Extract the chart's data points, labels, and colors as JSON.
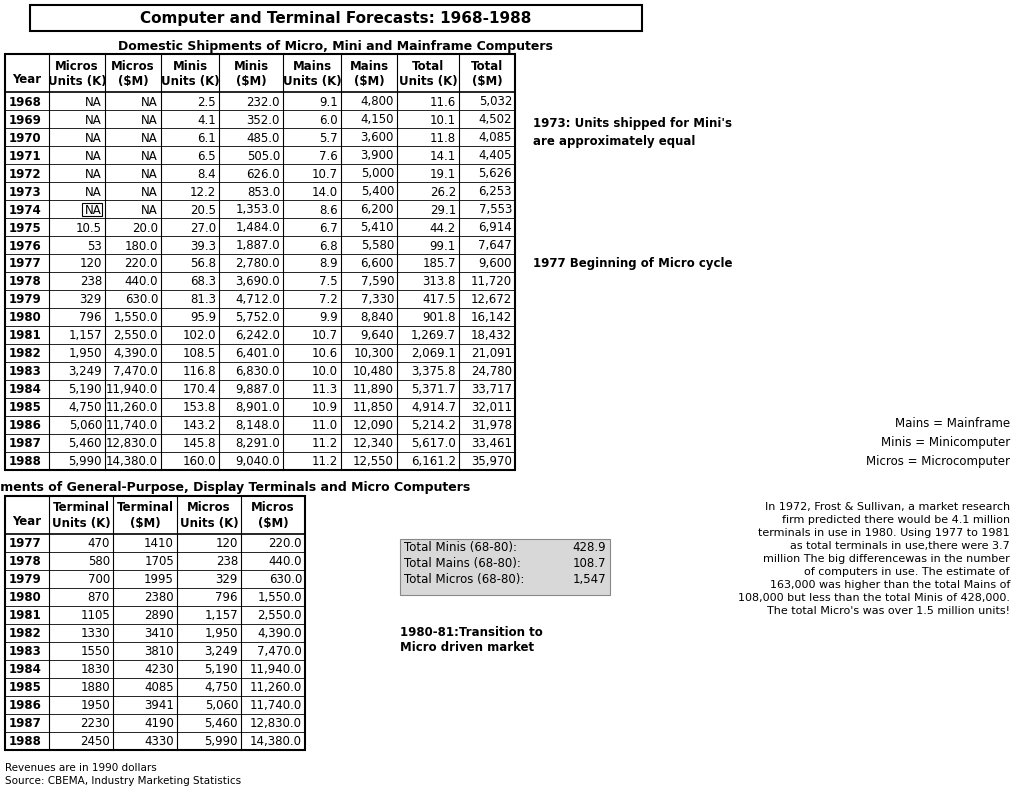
{
  "title": "Computer and Terminal Forecasts: 1968-1988",
  "table1_subtitle": "Domestic Shipments of Micro, Mini and Mainframe Computers",
  "table1_headers": [
    "Year",
    "Micros\nUnits (K)",
    "Micros\n($M)",
    "Minis\nUnits (K)",
    "Minis\n($M)",
    "Mains\nUnits (K)",
    "Mains\n($M)",
    "Total\nUnits (K)",
    "Total\n($M)"
  ],
  "table1_data": [
    [
      "1968",
      "NA",
      "NA",
      "2.5",
      "232.0",
      "9.1",
      "4,800",
      "11.6",
      "5,032"
    ],
    [
      "1969",
      "NA",
      "NA",
      "4.1",
      "352.0",
      "6.0",
      "4,150",
      "10.1",
      "4,502"
    ],
    [
      "1970",
      "NA",
      "NA",
      "6.1",
      "485.0",
      "5.7",
      "3,600",
      "11.8",
      "4,085"
    ],
    [
      "1971",
      "NA",
      "NA",
      "6.5",
      "505.0",
      "7.6",
      "3,900",
      "14.1",
      "4,405"
    ],
    [
      "1972",
      "NA",
      "NA",
      "8.4",
      "626.0",
      "10.7",
      "5,000",
      "19.1",
      "5,626"
    ],
    [
      "1973",
      "NA",
      "NA",
      "12.2",
      "853.0",
      "14.0",
      "5,400",
      "26.2",
      "6,253"
    ],
    [
      "1974",
      "NA",
      "NA",
      "20.5",
      "1,353.0",
      "8.6",
      "6,200",
      "29.1",
      "7,553"
    ],
    [
      "1975",
      "10.5",
      "20.0",
      "27.0",
      "1,484.0",
      "6.7",
      "5,410",
      "44.2",
      "6,914"
    ],
    [
      "1976",
      "53",
      "180.0",
      "39.3",
      "1,887.0",
      "6.8",
      "5,580",
      "99.1",
      "7,647"
    ],
    [
      "1977",
      "120",
      "220.0",
      "56.8",
      "2,780.0",
      "8.9",
      "6,600",
      "185.7",
      "9,600"
    ],
    [
      "1978",
      "238",
      "440.0",
      "68.3",
      "3,690.0",
      "7.5",
      "7,590",
      "313.8",
      "11,720"
    ],
    [
      "1979",
      "329",
      "630.0",
      "81.3",
      "4,712.0",
      "7.2",
      "7,330",
      "417.5",
      "12,672"
    ],
    [
      "1980",
      "796",
      "1,550.0",
      "95.9",
      "5,752.0",
      "9.9",
      "8,840",
      "901.8",
      "16,142"
    ],
    [
      "1981",
      "1,157",
      "2,550.0",
      "102.0",
      "6,242.0",
      "10.7",
      "9,640",
      "1,269.7",
      "18,432"
    ],
    [
      "1982",
      "1,950",
      "4,390.0",
      "108.5",
      "6,401.0",
      "10.6",
      "10,300",
      "2,069.1",
      "21,091"
    ],
    [
      "1983",
      "3,249",
      "7,470.0",
      "116.8",
      "6,830.0",
      "10.0",
      "10,480",
      "3,375.8",
      "24,780"
    ],
    [
      "1984",
      "5,190",
      "11,940.0",
      "170.4",
      "9,887.0",
      "11.3",
      "11,890",
      "5,371.7",
      "33,717"
    ],
    [
      "1985",
      "4,750",
      "11,260.0",
      "153.8",
      "8,901.0",
      "10.9",
      "11,850",
      "4,914.7",
      "32,011"
    ],
    [
      "1986",
      "5,060",
      "11,740.0",
      "143.2",
      "8,148.0",
      "11.0",
      "12,090",
      "5,214.2",
      "31,978"
    ],
    [
      "1987",
      "5,460",
      "12,830.0",
      "145.8",
      "8,291.0",
      "11.2",
      "12,340",
      "5,617.0",
      "33,461"
    ],
    [
      "1988",
      "5,990",
      "14,380.0",
      "160.0",
      "9,040.0",
      "11.2",
      "12,550",
      "6,161.2",
      "35,970"
    ]
  ],
  "table2_subtitle": "Domestic Shipments of General-Purpose, Display Terminals and Micro Computers",
  "table2_headers": [
    "Year",
    "Terminal\nUnits (K)",
    "Terminal\n($M)",
    "Micros\nUnits (K)",
    "Micros\n($M)"
  ],
  "table2_data": [
    [
      "1977",
      "470",
      "1410",
      "120",
      "220.0"
    ],
    [
      "1978",
      "580",
      "1705",
      "238",
      "440.0"
    ],
    [
      "1979",
      "700",
      "1995",
      "329",
      "630.0"
    ],
    [
      "1980",
      "870",
      "2380",
      "796",
      "1,550.0"
    ],
    [
      "1981",
      "1105",
      "2890",
      "1,157",
      "2,550.0"
    ],
    [
      "1982",
      "1330",
      "3410",
      "1,950",
      "4,390.0"
    ],
    [
      "1983",
      "1550",
      "3810",
      "3,249",
      "7,470.0"
    ],
    [
      "1984",
      "1830",
      "4230",
      "5,190",
      "11,940.0"
    ],
    [
      "1985",
      "1880",
      "4085",
      "4,750",
      "11,260.0"
    ],
    [
      "1986",
      "1950",
      "3941",
      "5,060",
      "11,740.0"
    ],
    [
      "1987",
      "2230",
      "4190",
      "5,460",
      "12,830.0"
    ],
    [
      "1988",
      "2450",
      "4330",
      "5,990",
      "14,380.0"
    ]
  ],
  "annotation_1973": "1973: Units shipped for Mini's\nare approximately equal",
  "annotation_1977": "1977 Beginning of Micro cycle",
  "annotation_mains": "Mains = Mainframe\nMinis = Minicomputer\nMicros = Microcomputer",
  "summary_lines": [
    [
      "Total Minis (68-80):",
      "428.9"
    ],
    [
      "Total Mains (68-80):",
      "108.7"
    ],
    [
      "Total Micros (68-80):",
      "1,547"
    ]
  ],
  "annotation_transition_line1": "1980-81:Transition to",
  "annotation_transition_line2": "Micro driven market",
  "annotation_right_lines": [
    "In 1972, Frost & Sullivan, a market research",
    "firm predicted there would be 4.1 million",
    "terminals in use in 1980. Using 1977 to 1981",
    "as total terminals in use,there were 3.7",
    "million The big differencewas in the number",
    "of computers in use. The estimate of",
    "163,000 was higher than the total Mains of",
    "108,000 but less than the total Minis of 428,000.",
    "The total Micro's was over 1.5 million units!"
  ],
  "footnote1": "Revenues are in 1990 dollars",
  "footnote2": "Source: CBEMA, Industry Marketing Statistics"
}
